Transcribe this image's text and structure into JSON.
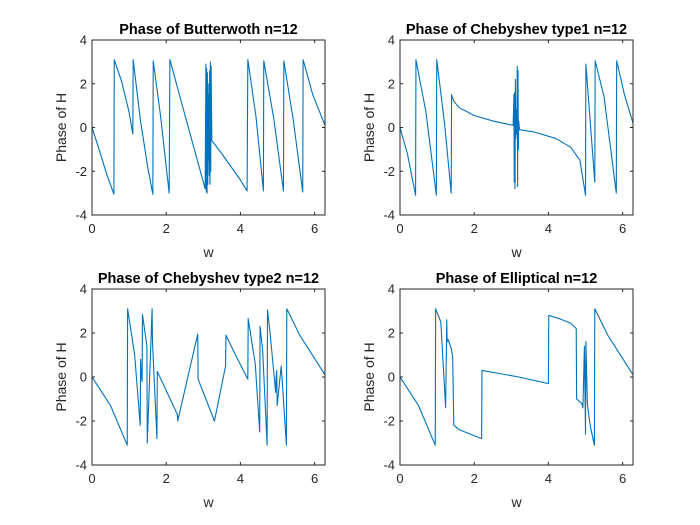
{
  "figure": {
    "background": "#ffffff",
    "axis_color": "#262626",
    "line_color": "#0072BD"
  },
  "chart_data": [
    {
      "type": "line",
      "title": "Phase of Butterwoth n=12",
      "xlabel": "w",
      "ylabel": "Phase of H",
      "xlim": [
        0,
        6.28
      ],
      "ylim": [
        -4,
        4
      ],
      "xticks": [
        0,
        2,
        4,
        6
      ],
      "yticks": [
        -4,
        -2,
        0,
        2,
        4
      ],
      "series": [
        {
          "color": "#0072BD",
          "x": [
            0,
            0.2,
            0.4,
            0.59,
            0.6,
            0.8,
            1.0,
            1.1,
            1.11,
            1.3,
            1.5,
            1.64,
            1.65,
            1.85,
            2.08,
            2.1,
            2.5,
            3.05,
            3.07,
            3.08,
            3.09,
            3.1,
            3.11,
            3.12,
            3.13,
            3.14,
            3.15,
            3.16,
            3.17,
            3.18,
            3.19,
            3.2,
            3.21,
            3.23,
            3.5,
            4.0,
            4.18,
            4.2,
            4.42,
            4.62,
            4.63,
            4.9,
            5.16,
            5.17,
            5.42,
            5.68,
            5.69,
            5.95,
            6.28
          ],
          "y": [
            0,
            -1.05,
            -2.15,
            -3.05,
            3.1,
            2.1,
            0.7,
            -0.3,
            3.1,
            0.4,
            -1.8,
            -3.05,
            3.05,
            0.5,
            -3.0,
            3.1,
            0.6,
            -2.8,
            2.9,
            -2.95,
            2.7,
            -3.0,
            2.5,
            -2.6,
            2.0,
            -1.5,
            1.5,
            -2.2,
            2.6,
            -2.6,
            3.0,
            -2.0,
            2.8,
            -0.6,
            -1.2,
            -2.4,
            -2.9,
            3.1,
            0.5,
            -2.9,
            3.05,
            0.4,
            -2.9,
            3.05,
            0.4,
            -2.95,
            3.1,
            1.5,
            0.1
          ]
        }
      ]
    },
    {
      "type": "line",
      "title": "Phase of Chebyshev type1 n=12",
      "xlabel": "w",
      "ylabel": "Phase of H",
      "xlim": [
        0,
        6.28
      ],
      "ylim": [
        -4,
        4
      ],
      "xticks": [
        0,
        2,
        4,
        6
      ],
      "yticks": [
        -4,
        -2,
        0,
        2,
        4
      ],
      "series": [
        {
          "color": "#0072BD",
          "x": [
            0,
            0.2,
            0.42,
            0.43,
            0.7,
            0.98,
            0.99,
            1.2,
            1.38,
            1.39,
            1.45,
            1.6,
            2.0,
            2.5,
            2.9,
            3.05,
            3.07,
            3.08,
            3.09,
            3.1,
            3.11,
            3.12,
            3.13,
            3.14,
            3.15,
            3.16,
            3.17,
            3.18,
            3.19,
            3.2,
            3.22,
            3.6,
            4.2,
            4.6,
            4.85,
            5.0,
            5.01,
            5.25,
            5.26,
            5.5,
            5.83,
            5.84,
            6.05,
            6.28
          ],
          "y": [
            0,
            -1.2,
            -3.1,
            3.1,
            0.7,
            -3.1,
            3.1,
            0.2,
            -3.0,
            1.5,
            1.2,
            0.9,
            0.55,
            0.3,
            0.15,
            0.1,
            1.5,
            -2.5,
            1.6,
            -2.8,
            2.2,
            -0.5,
            0.8,
            0.2,
            -0.3,
            2.8,
            -2.7,
            2.6,
            -1.0,
            0.3,
            -0.1,
            -0.2,
            -0.5,
            -0.9,
            -1.5,
            -3.1,
            2.9,
            -2.5,
            3.05,
            1.4,
            -3.0,
            3.05,
            1.5,
            0.2
          ]
        }
      ]
    },
    {
      "type": "line",
      "title": "Phase of Chebyshev type2 n=12",
      "xlabel": "w",
      "ylabel": "Phase of H",
      "xlim": [
        0,
        6.28
      ],
      "ylim": [
        -4,
        4
      ],
      "xticks": [
        0,
        2,
        4,
        6
      ],
      "yticks": [
        -4,
        -2,
        0,
        2,
        4
      ],
      "series": [
        {
          "color": "#0072BD",
          "x": [
            0,
            0.5,
            0.95,
            0.96,
            1.15,
            1.3,
            1.31,
            1.33,
            1.35,
            1.36,
            1.48,
            1.49,
            1.62,
            1.63,
            1.75,
            1.76,
            2.3,
            2.31,
            2.85,
            2.86,
            3.3,
            3.6,
            3.61,
            3.9,
            4.2,
            4.21,
            4.4,
            4.52,
            4.53,
            4.6,
            4.72,
            4.73,
            4.8,
            4.95,
            4.96,
            4.98,
            4.99,
            5.1,
            5.24,
            5.25,
            5.6,
            6.28
          ],
          "y": [
            0,
            -1.3,
            -3.1,
            3.1,
            1.0,
            -2.2,
            0.8,
            0.0,
            -0.2,
            2.85,
            1.4,
            -3.0,
            3.1,
            1.6,
            -2.8,
            0.25,
            -1.7,
            -2.0,
            1.95,
            -0.1,
            -2.0,
            0.5,
            1.9,
            0.9,
            -0.1,
            2.65,
            0.6,
            -2.5,
            2.3,
            1.2,
            -3.1,
            3.05,
            2.0,
            -0.7,
            -0.1,
            0.3,
            -1.3,
            0.5,
            -3.1,
            3.1,
            1.9,
            0.1
          ]
        }
      ]
    },
    {
      "type": "line",
      "title": "Phase of Elliptical n=12",
      "xlabel": "w",
      "ylabel": "Phase of H",
      "xlim": [
        0,
        6.28
      ],
      "ylim": [
        -4,
        4
      ],
      "xticks": [
        0,
        2,
        4,
        6
      ],
      "yticks": [
        -4,
        -2,
        0,
        2,
        4
      ],
      "series": [
        {
          "color": "#0072BD",
          "x": [
            0,
            0.5,
            0.95,
            0.96,
            1.1,
            1.2,
            1.23,
            1.26,
            1.27,
            1.3,
            1.38,
            1.42,
            1.45,
            1.46,
            1.6,
            2.2,
            2.21,
            3.2,
            4.0,
            4.01,
            4.3,
            4.6,
            4.75,
            4.76,
            4.9,
            4.93,
            4.97,
            5.0,
            5.01,
            5.05,
            5.1,
            5.15,
            5.24,
            5.25,
            5.6,
            6.28
          ],
          "y": [
            0,
            -1.3,
            -3.1,
            3.1,
            2.5,
            -0.5,
            -1.4,
            2.6,
            1.6,
            1.7,
            1.3,
            0.9,
            -2.2,
            -2.2,
            -2.4,
            -2.8,
            0.3,
            0.0,
            -0.3,
            2.8,
            2.65,
            2.45,
            2.2,
            -1.0,
            -1.2,
            -1.4,
            1.4,
            -2.6,
            1.6,
            -1.2,
            -1.9,
            -2.4,
            -3.1,
            3.1,
            1.9,
            0.1
          ]
        }
      ]
    }
  ]
}
